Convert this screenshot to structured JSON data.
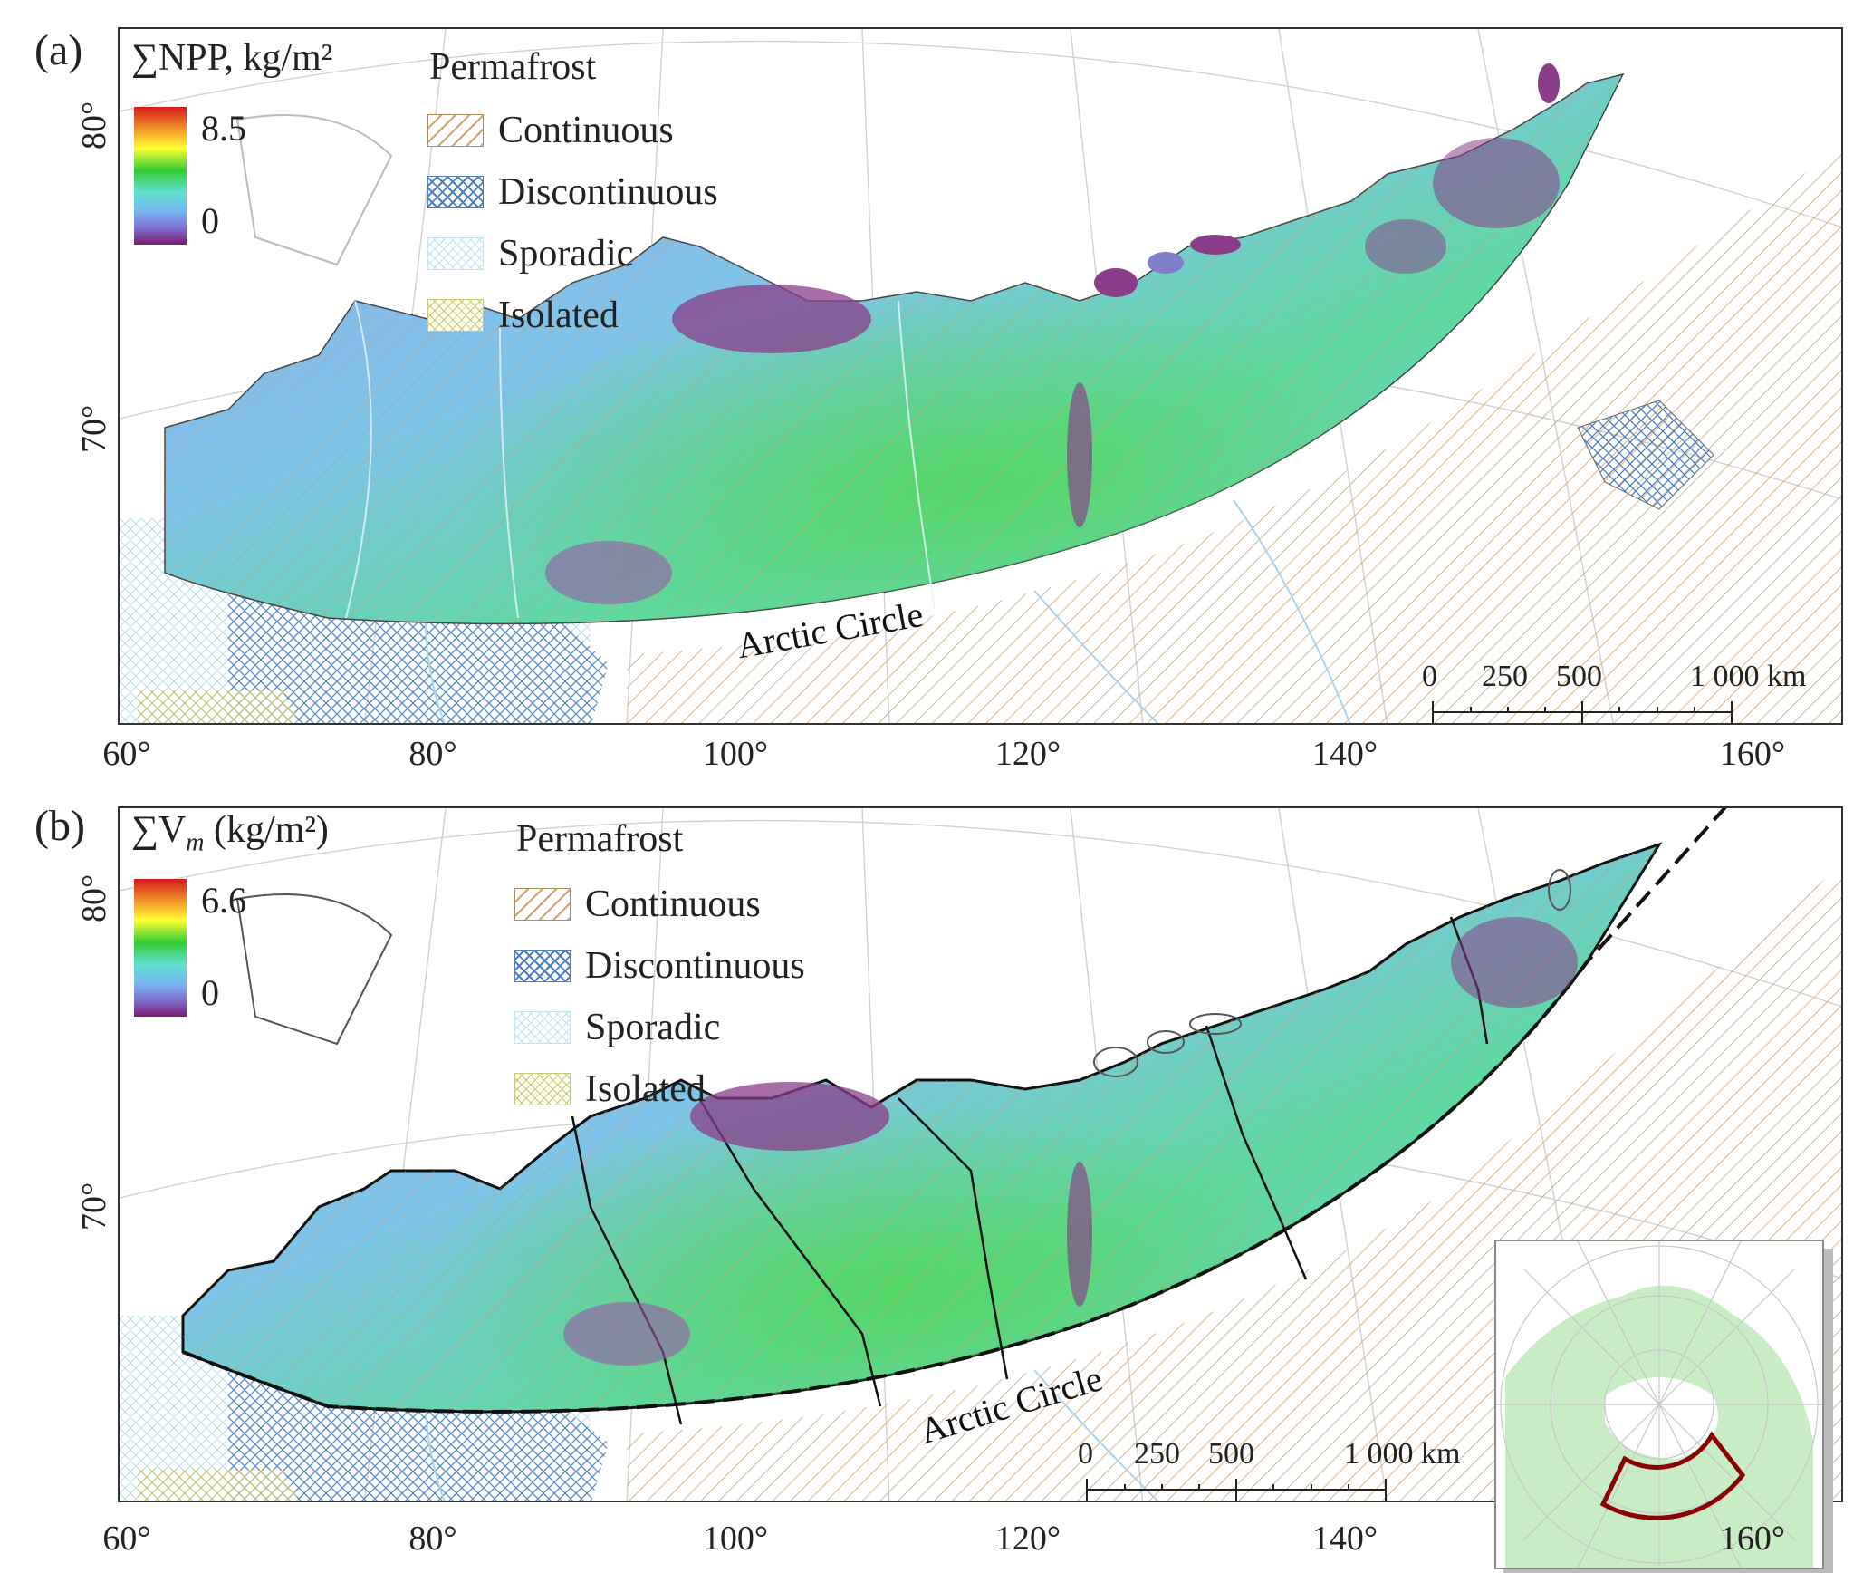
{
  "panel_a": {
    "label": "(a)",
    "colorbar_title": "∑NPP, kg/m²",
    "colorbar_max": "8.5",
    "colorbar_min": "0",
    "permafrost_title": "Permafrost",
    "permafrost_items": [
      "Continuous",
      "Discontinuous",
      "Sporadic",
      "Isolated"
    ],
    "arctic_circle": "Arctic Circle",
    "scale_labels": [
      "0",
      "250",
      "500",
      "1 000 km"
    ]
  },
  "panel_b": {
    "label": "(b)",
    "colorbar_title": "∑V",
    "colorbar_title_sub": "m",
    "colorbar_title_unit": " (kg/m²)",
    "colorbar_max": "6.6",
    "colorbar_min": "0",
    "permafrost_title": "Permafrost",
    "permafrost_items": [
      "Continuous",
      "Discontinuous",
      "Sporadic",
      "Isolated"
    ],
    "arctic_circle": "Arctic Circle",
    "scale_labels": [
      "0",
      "250",
      "500",
      "1 000 km"
    ]
  },
  "axes": {
    "lon_labels": [
      "60°",
      "80°",
      "100°",
      "120°",
      "140°",
      "160°"
    ],
    "lat_labels": [
      "80°",
      "70°"
    ]
  },
  "colors": {
    "continuous_hatch": "#cfa46f",
    "discontinuous_hatch": "#4e7fc3",
    "sporadic_hatch": "#bfe3f0",
    "isolated_hatch": "#c8c87a",
    "inset_land": "#c8ecc4",
    "inset_outline": "#8b0000"
  }
}
